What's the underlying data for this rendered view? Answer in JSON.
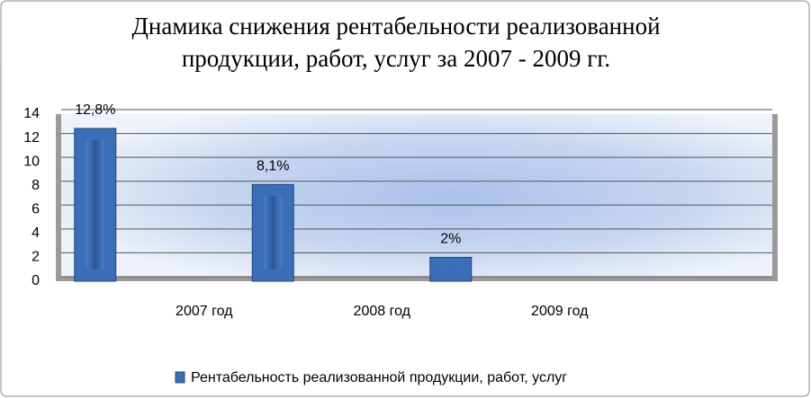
{
  "chart_data": {
    "type": "bar",
    "title": [
      "Днамика снижения рентабельности реализованной",
      "продукции, работ, услуг за 2007 - 2009 гг."
    ],
    "categories": [
      "2007 год",
      "2008 год",
      "2009 год",
      null
    ],
    "series": [
      {
        "name": "Рентабельность реализованной продукции, работ, услуг",
        "color": "#3a6fb8",
        "values": [
          12.8,
          8.1,
          2,
          null
        ],
        "value_labels": [
          "12,8%",
          "8,1%",
          "2%",
          null
        ]
      }
    ],
    "ylim": [
      0,
      14
    ],
    "yticks": [
      0,
      2,
      4,
      6,
      8,
      10,
      12,
      14
    ],
    "grid": true,
    "legend": "bottom"
  }
}
